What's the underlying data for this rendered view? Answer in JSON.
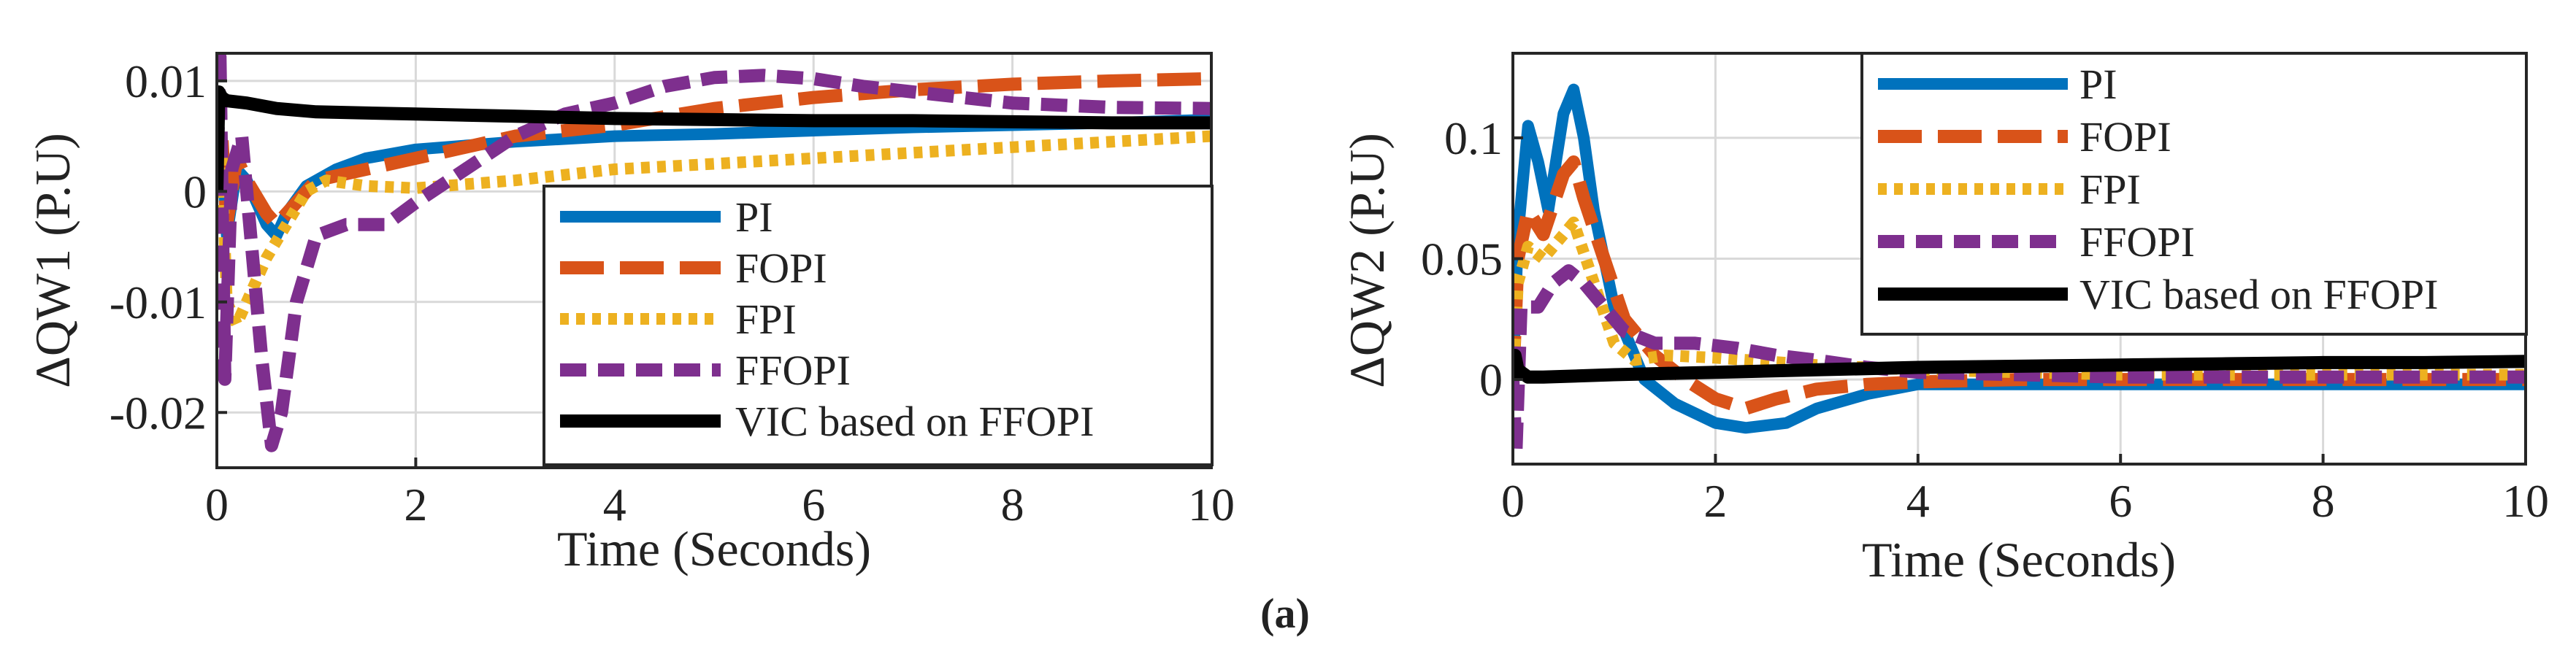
{
  "caption": "(a)",
  "chart_data": [
    {
      "type": "line",
      "xlabel": "Time (Seconds)",
      "ylabel": "ΔQW1 (P.U)",
      "xlim": [
        0,
        10
      ],
      "ylim": [
        -0.025,
        0.0125
      ],
      "xticks": [
        0,
        2,
        4,
        6,
        8,
        10
      ],
      "yticks": [
        -0.02,
        -0.01,
        0,
        0.01
      ],
      "x_tick_labels": [
        "0",
        "2",
        "4",
        "6",
        "8",
        "10"
      ],
      "y_tick_labels": [
        "-0.02",
        "-0.01",
        "0",
        "0.01"
      ],
      "grid": true,
      "legend_position": "bottom-right",
      "series": [
        {
          "name": "PI",
          "color": "#0072BD",
          "dash": "solid",
          "points": [
            [
              0,
              0
            ],
            [
              0.05,
              0.004
            ],
            [
              0.1,
              -0.004
            ],
            [
              0.2,
              0.002
            ],
            [
              0.3,
              0.001
            ],
            [
              0.5,
              -0.003
            ],
            [
              0.6,
              -0.004
            ],
            [
              0.7,
              -0.002
            ],
            [
              0.9,
              0.0005
            ],
            [
              1.2,
              0.002
            ],
            [
              1.5,
              0.003
            ],
            [
              2,
              0.0038
            ],
            [
              3,
              0.0045
            ],
            [
              4,
              0.005
            ],
            [
              5,
              0.0052
            ],
            [
              6,
              0.0055
            ],
            [
              7,
              0.0058
            ],
            [
              8,
              0.006
            ],
            [
              9,
              0.0062
            ],
            [
              10,
              0.0065
            ]
          ]
        },
        {
          "name": "FOPI",
          "color": "#D95319",
          "dash": "long-dash",
          "points": [
            [
              0,
              0
            ],
            [
              0.05,
              0.005
            ],
            [
              0.1,
              -0.003
            ],
            [
              0.2,
              0.003
            ],
            [
              0.3,
              0.001
            ],
            [
              0.5,
              -0.002
            ],
            [
              0.6,
              -0.003
            ],
            [
              0.8,
              -0.001
            ],
            [
              1,
              0.001
            ],
            [
              1.5,
              0.002
            ],
            [
              2,
              0.003
            ],
            [
              3,
              0.005
            ],
            [
              4,
              0.006
            ],
            [
              5,
              0.0075
            ],
            [
              6,
              0.0085
            ],
            [
              7,
              0.0092
            ],
            [
              8,
              0.0097
            ],
            [
              9,
              0.01
            ],
            [
              10,
              0.0102
            ]
          ]
        },
        {
          "name": "FPI",
          "color": "#EDB120",
          "dash": "dotted",
          "points": [
            [
              0,
              0
            ],
            [
              0.05,
              0.003
            ],
            [
              0.1,
              -0.01
            ],
            [
              0.2,
              -0.012
            ],
            [
              0.3,
              -0.01
            ],
            [
              0.5,
              -0.006
            ],
            [
              0.7,
              -0.003
            ],
            [
              0.9,
              0
            ],
            [
              1.1,
              0.001
            ],
            [
              1.5,
              0.0005
            ],
            [
              2,
              0.0003
            ],
            [
              3,
              0.001
            ],
            [
              4,
              0.002
            ],
            [
              5,
              0.0025
            ],
            [
              6,
              0.003
            ],
            [
              7,
              0.0035
            ],
            [
              8,
              0.004
            ],
            [
              9,
              0.0045
            ],
            [
              10,
              0.005
            ]
          ]
        },
        {
          "name": "FFOPI",
          "color": "#7E2F8E",
          "dash": "dashed",
          "points": [
            [
              0,
              0
            ],
            [
              0.03,
              0.013
            ],
            [
              0.08,
              -0.017
            ],
            [
              0.15,
              0.002
            ],
            [
              0.25,
              0.005
            ],
            [
              0.35,
              -0.005
            ],
            [
              0.45,
              -0.015
            ],
            [
              0.55,
              -0.023
            ],
            [
              0.65,
              -0.02
            ],
            [
              0.8,
              -0.01
            ],
            [
              1,
              -0.004
            ],
            [
              1.3,
              -0.003
            ],
            [
              1.7,
              -0.003
            ],
            [
              2,
              -0.001
            ],
            [
              2.5,
              0.002
            ],
            [
              3,
              0.005
            ],
            [
              3.5,
              0.007
            ],
            [
              4,
              0.008
            ],
            [
              4.5,
              0.0095
            ],
            [
              5,
              0.0103
            ],
            [
              5.5,
              0.0105
            ],
            [
              6,
              0.0102
            ],
            [
              6.5,
              0.0095
            ],
            [
              7,
              0.009
            ],
            [
              7.5,
              0.0085
            ],
            [
              8,
              0.008
            ],
            [
              8.5,
              0.0078
            ],
            [
              9,
              0.0076
            ],
            [
              10,
              0.0075
            ]
          ]
        },
        {
          "name": "VIC based on FFOPI",
          "color": "#000000",
          "dash": "solid",
          "points": [
            [
              0,
              0
            ],
            [
              0.02,
              0.009
            ],
            [
              0.05,
              0.0085
            ],
            [
              0.1,
              0.0082
            ],
            [
              0.3,
              0.008
            ],
            [
              0.6,
              0.0075
            ],
            [
              1,
              0.0072
            ],
            [
              2,
              0.007
            ],
            [
              3,
              0.0068
            ],
            [
              4,
              0.0066
            ],
            [
              5,
              0.0065
            ],
            [
              6,
              0.0064
            ],
            [
              7,
              0.0064
            ],
            [
              8,
              0.0063
            ],
            [
              9,
              0.0062
            ],
            [
              10,
              0.0062
            ]
          ]
        }
      ]
    },
    {
      "type": "line",
      "xlabel": "Time (Seconds)",
      "ylabel": "ΔQW2 (P.U)",
      "xlim": [
        0,
        10
      ],
      "ylim": [
        -0.035,
        0.135
      ],
      "xticks": [
        0,
        2,
        4,
        6,
        8,
        10
      ],
      "yticks": [
        0,
        0.05,
        0.1
      ],
      "x_tick_labels": [
        "0",
        "2",
        "4",
        "6",
        "8",
        "10"
      ],
      "y_tick_labels": [
        "0",
        "0.05",
        "0.1"
      ],
      "grid": true,
      "legend_position": "top-right",
      "series": [
        {
          "name": "PI",
          "color": "#0072BD",
          "dash": "solid",
          "points": [
            [
              0,
              0
            ],
            [
              0.05,
              0.06
            ],
            [
              0.15,
              0.105
            ],
            [
              0.25,
              0.09
            ],
            [
              0.35,
              0.07
            ],
            [
              0.5,
              0.11
            ],
            [
              0.6,
              0.12
            ],
            [
              0.7,
              0.1
            ],
            [
              0.8,
              0.07
            ],
            [
              1,
              0.03
            ],
            [
              1.3,
              0
            ],
            [
              1.6,
              -0.01
            ],
            [
              2,
              -0.018
            ],
            [
              2.3,
              -0.02
            ],
            [
              2.7,
              -0.018
            ],
            [
              3,
              -0.012
            ],
            [
              3.5,
              -0.006
            ],
            [
              4,
              -0.002
            ],
            [
              5,
              -0.002
            ],
            [
              6,
              -0.002
            ],
            [
              7,
              -0.002
            ],
            [
              8,
              -0.002
            ],
            [
              9,
              -0.002
            ],
            [
              10,
              -0.002
            ]
          ]
        },
        {
          "name": "FOPI",
          "color": "#D95319",
          "dash": "long-dash",
          "points": [
            [
              0,
              0
            ],
            [
              0.05,
              0.05
            ],
            [
              0.15,
              0.07
            ],
            [
              0.3,
              0.06
            ],
            [
              0.5,
              0.085
            ],
            [
              0.6,
              0.09
            ],
            [
              0.7,
              0.075
            ],
            [
              0.9,
              0.05
            ],
            [
              1.1,
              0.025
            ],
            [
              1.4,
              0.01
            ],
            [
              1.7,
              0
            ],
            [
              2,
              -0.008
            ],
            [
              2.3,
              -0.012
            ],
            [
              2.6,
              -0.008
            ],
            [
              3,
              -0.004
            ],
            [
              3.5,
              -0.002
            ],
            [
              4,
              -0.001
            ],
            [
              5,
              0
            ],
            [
              6,
              0
            ],
            [
              7,
              0
            ],
            [
              8,
              0
            ],
            [
              9,
              0
            ],
            [
              10,
              0
            ]
          ]
        },
        {
          "name": "FPI",
          "color": "#EDB120",
          "dash": "dotted",
          "points": [
            [
              0,
              0
            ],
            [
              0.05,
              0.04
            ],
            [
              0.15,
              0.055
            ],
            [
              0.3,
              0.05
            ],
            [
              0.5,
              0.06
            ],
            [
              0.6,
              0.065
            ],
            [
              0.8,
              0.04
            ],
            [
              1,
              0.015
            ],
            [
              1.2,
              0.008
            ],
            [
              1.5,
              0.01
            ],
            [
              2,
              0.009
            ],
            [
              3,
              0.006
            ],
            [
              4,
              0.004
            ],
            [
              5,
              0.003
            ],
            [
              6,
              0.002
            ],
            [
              7,
              0.002
            ],
            [
              8,
              0.002
            ],
            [
              9,
              0.002
            ],
            [
              10,
              0.002
            ]
          ]
        },
        {
          "name": "FFOPI",
          "color": "#7E2F8E",
          "dash": "dashed",
          "points": [
            [
              0,
              0
            ],
            [
              0.03,
              -0.03
            ],
            [
              0.08,
              0.03
            ],
            [
              0.15,
              0.03
            ],
            [
              0.25,
              0.03
            ],
            [
              0.4,
              0.04
            ],
            [
              0.55,
              0.045
            ],
            [
              0.7,
              0.04
            ],
            [
              0.9,
              0.03
            ],
            [
              1.1,
              0.02
            ],
            [
              1.4,
              0.015
            ],
            [
              1.8,
              0.015
            ],
            [
              2.2,
              0.013
            ],
            [
              2.6,
              0.01
            ],
            [
              3,
              0.008
            ],
            [
              3.5,
              0.005
            ],
            [
              4,
              0.003
            ],
            [
              5,
              0.002
            ],
            [
              6,
              0.001
            ],
            [
              7,
              0.001
            ],
            [
              8,
              0.001
            ],
            [
              9,
              0.001
            ],
            [
              10,
              0.001
            ]
          ]
        },
        {
          "name": "VIC based on FFOPI",
          "color": "#000000",
          "dash": "solid",
          "points": [
            [
              0,
              0
            ],
            [
              0.02,
              0.01
            ],
            [
              0.05,
              0.004
            ],
            [
              0.15,
              0.001
            ],
            [
              0.3,
              0.001
            ],
            [
              1,
              0.002
            ],
            [
              2,
              0.003
            ],
            [
              3,
              0.004
            ],
            [
              4,
              0.005
            ],
            [
              5,
              0.0055
            ],
            [
              6,
              0.006
            ],
            [
              7,
              0.0065
            ],
            [
              8,
              0.007
            ],
            [
              9,
              0.007
            ],
            [
              10,
              0.0075
            ]
          ]
        }
      ]
    }
  ]
}
